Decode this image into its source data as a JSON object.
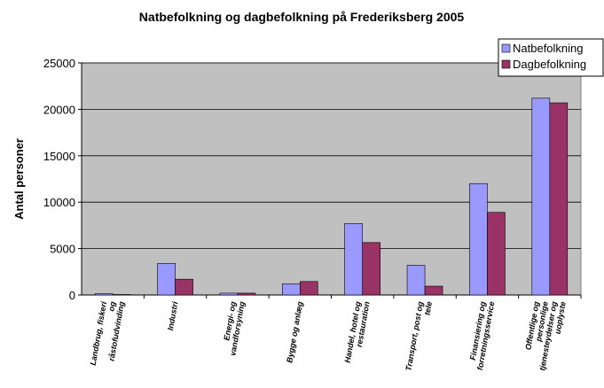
{
  "chart_data": {
    "type": "bar",
    "title": "Natbefolkning og dagbefolkning på Frederiksberg 2005",
    "ylabel": "Antal personer",
    "categories": [
      [
        "Landbrug, fiskeri",
        "og",
        "råstofudvinding"
      ],
      [
        "Industri"
      ],
      [
        "Energi- og",
        "vandforsyning"
      ],
      [
        "Bygge og anlæg"
      ],
      [
        "Handel, hotel og",
        "restauration"
      ],
      [
        "Transport, post og",
        "tele"
      ],
      [
        "Finansiering og",
        "forretningsservice"
      ],
      [
        "Offentlige og",
        "personlige",
        "tjenesteydelser og",
        "uoplyste"
      ]
    ],
    "series": [
      {
        "name": "Natbefolkning",
        "color": "#9999ff",
        "values": [
          150,
          3400,
          200,
          1200,
          7700,
          3200,
          12000,
          21200
        ]
      },
      {
        "name": "Dagbefolkning",
        "color": "#993366",
        "values": [
          50,
          1700,
          200,
          1450,
          5650,
          950,
          8900,
          20700
        ]
      }
    ],
    "ylim": [
      0,
      25000
    ],
    "yticks": [
      0,
      5000,
      10000,
      15000,
      20000,
      25000
    ],
    "grid": true,
    "legend": "upper right"
  }
}
